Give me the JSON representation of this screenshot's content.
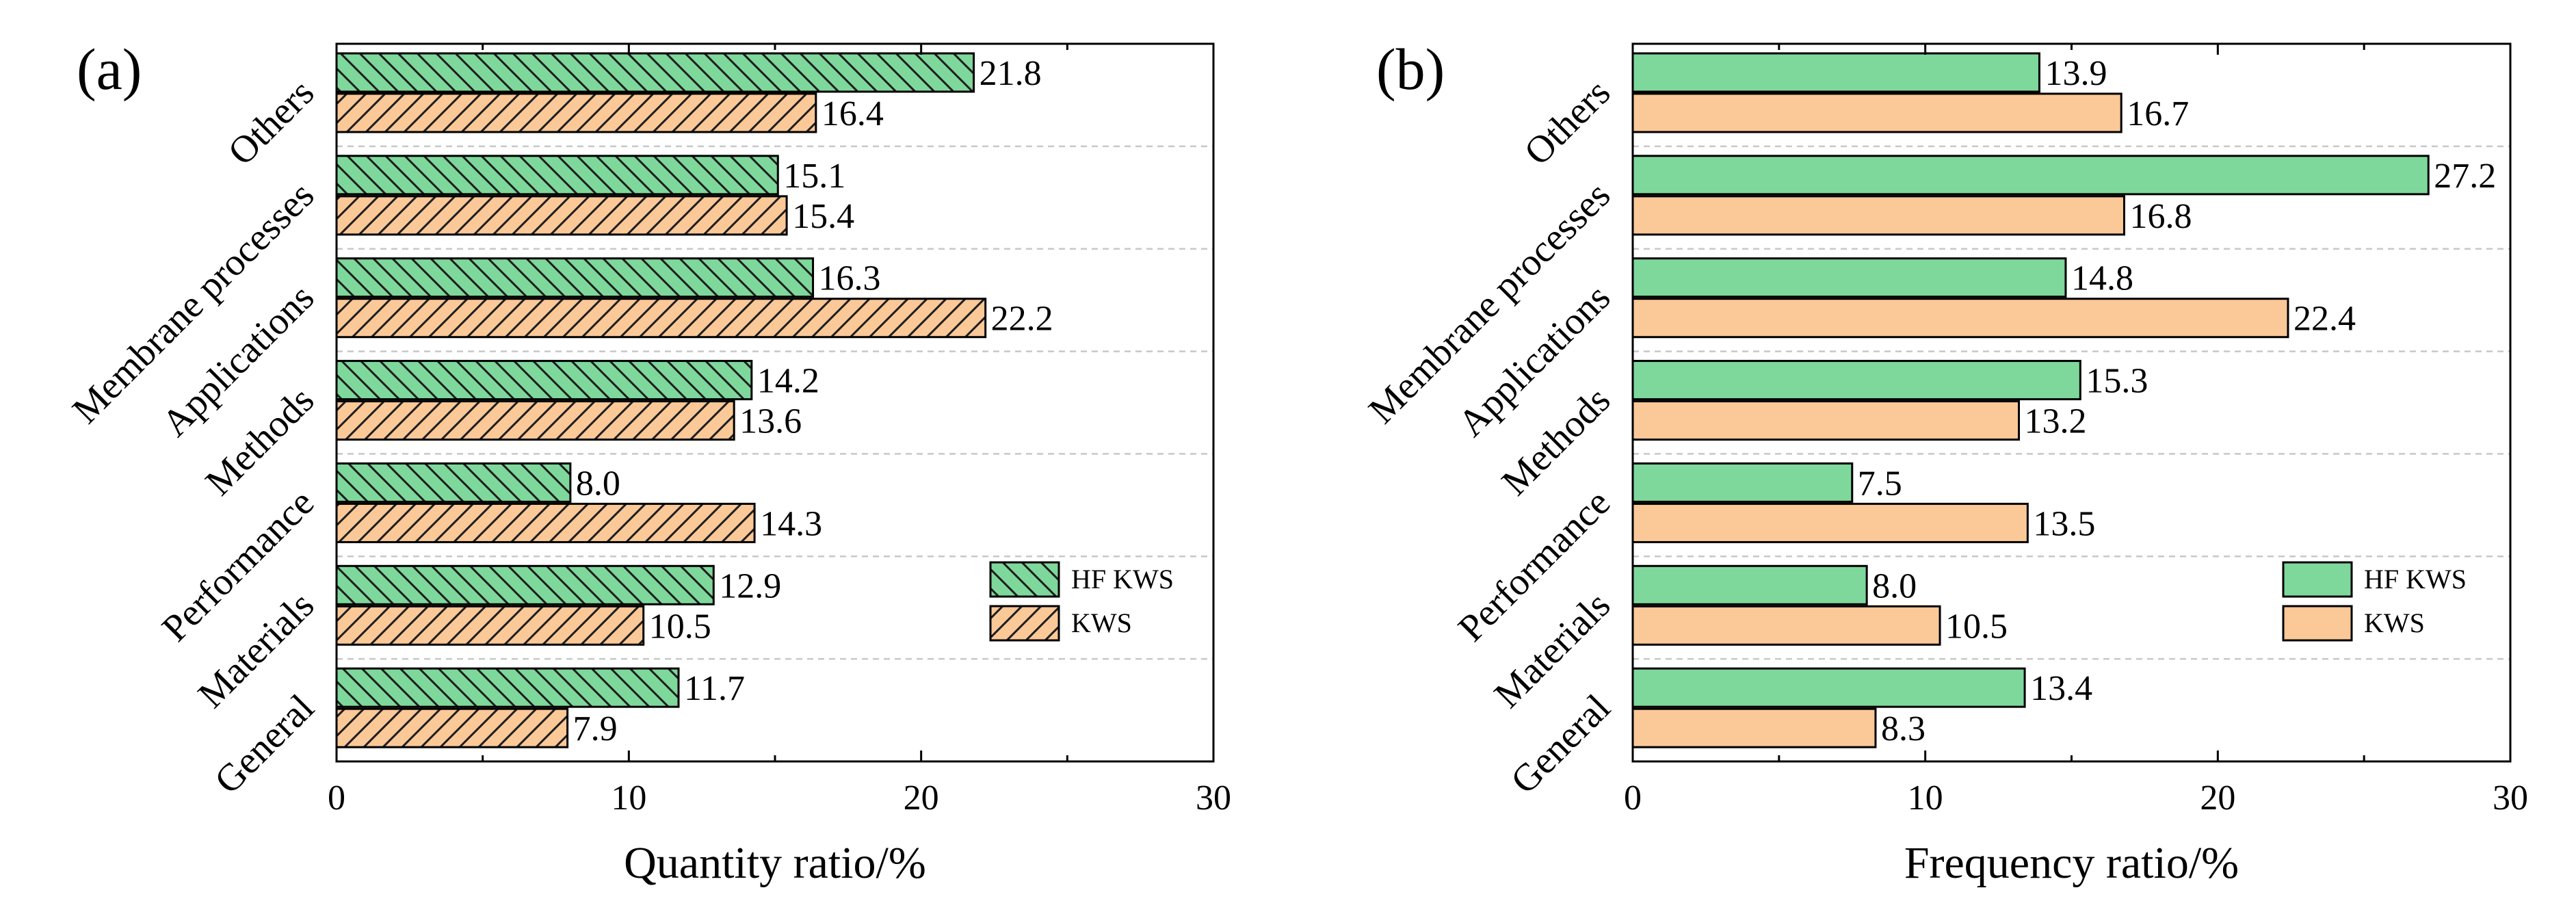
{
  "colors": {
    "hf_kws": "#7ed89b",
    "kws": "#fbc898",
    "gridline": "#c8c8c8",
    "axis": "#000000"
  },
  "chart_data": [
    {
      "type": "bar",
      "orientation": "horizontal",
      "panel_label": "(a)",
      "xlabel": "Quantity ratio/%",
      "xlim": [
        0,
        30
      ],
      "xticks": [
        0,
        10,
        20,
        30
      ],
      "categories": [
        "Others",
        "Membrane processes",
        "Applications",
        "Methods",
        "Performance",
        "Materials",
        "General"
      ],
      "series": [
        {
          "name": "HF KWS",
          "color_key": "hf_kws",
          "pattern": "backslash-hatch",
          "values": [
            21.8,
            15.1,
            16.3,
            14.2,
            8.0,
            12.9,
            11.7
          ]
        },
        {
          "name": "KWS",
          "color_key": "kws",
          "pattern": "slash-hatch",
          "values": [
            16.4,
            15.4,
            22.2,
            13.6,
            14.3,
            10.5,
            7.9
          ]
        }
      ],
      "data_labels": true,
      "grid": "dashed horizontal separators between categories",
      "legend_position": "lower-right"
    },
    {
      "type": "bar",
      "orientation": "horizontal",
      "panel_label": "(b)",
      "xlabel": "Frequency ratio/%",
      "xlim": [
        0,
        30
      ],
      "xticks": [
        0,
        10,
        20,
        30
      ],
      "categories": [
        "Others",
        "Membrane processes",
        "Applications",
        "Methods",
        "Performance",
        "Materials",
        "General"
      ],
      "series": [
        {
          "name": "HF KWS",
          "color_key": "hf_kws",
          "pattern": "solid",
          "values": [
            13.9,
            27.2,
            14.8,
            15.3,
            7.5,
            8.0,
            13.4
          ]
        },
        {
          "name": "KWS",
          "color_key": "kws",
          "pattern": "solid",
          "values": [
            16.7,
            16.8,
            22.4,
            13.2,
            13.5,
            10.5,
            8.3
          ]
        }
      ],
      "data_labels": true,
      "grid": "dashed horizontal separators between categories",
      "legend_position": "lower-right"
    }
  ]
}
